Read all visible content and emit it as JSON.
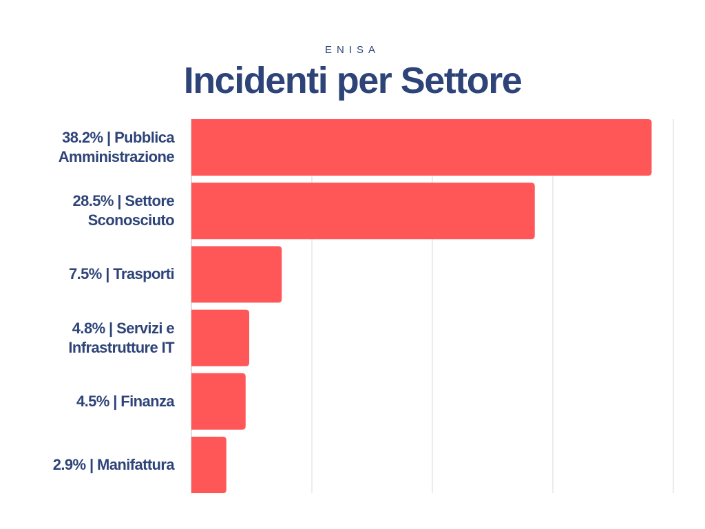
{
  "chart_data": {
    "type": "bar",
    "orientation": "horizontal",
    "supertitle": "ENISA",
    "title": "Incidenti per Settore",
    "categories": [
      "38.2% | Pubblica Amministrazione",
      "28.5% | Settore Sconosciuto",
      "7.5% | Trasporti",
      "4.8% | Servizi e Infrastrutture IT",
      "4.5% | Finanza",
      "2.9% | Manifattura"
    ],
    "values": [
      38.2,
      28.5,
      7.5,
      4.8,
      4.5,
      2.9
    ],
    "unit": "%",
    "xlim": [
      0,
      40
    ],
    "grid": true,
    "grid_step": 10,
    "colors": {
      "bar": "#FF5757",
      "text": "#2E4478",
      "grid": "#D9D9D9"
    }
  }
}
